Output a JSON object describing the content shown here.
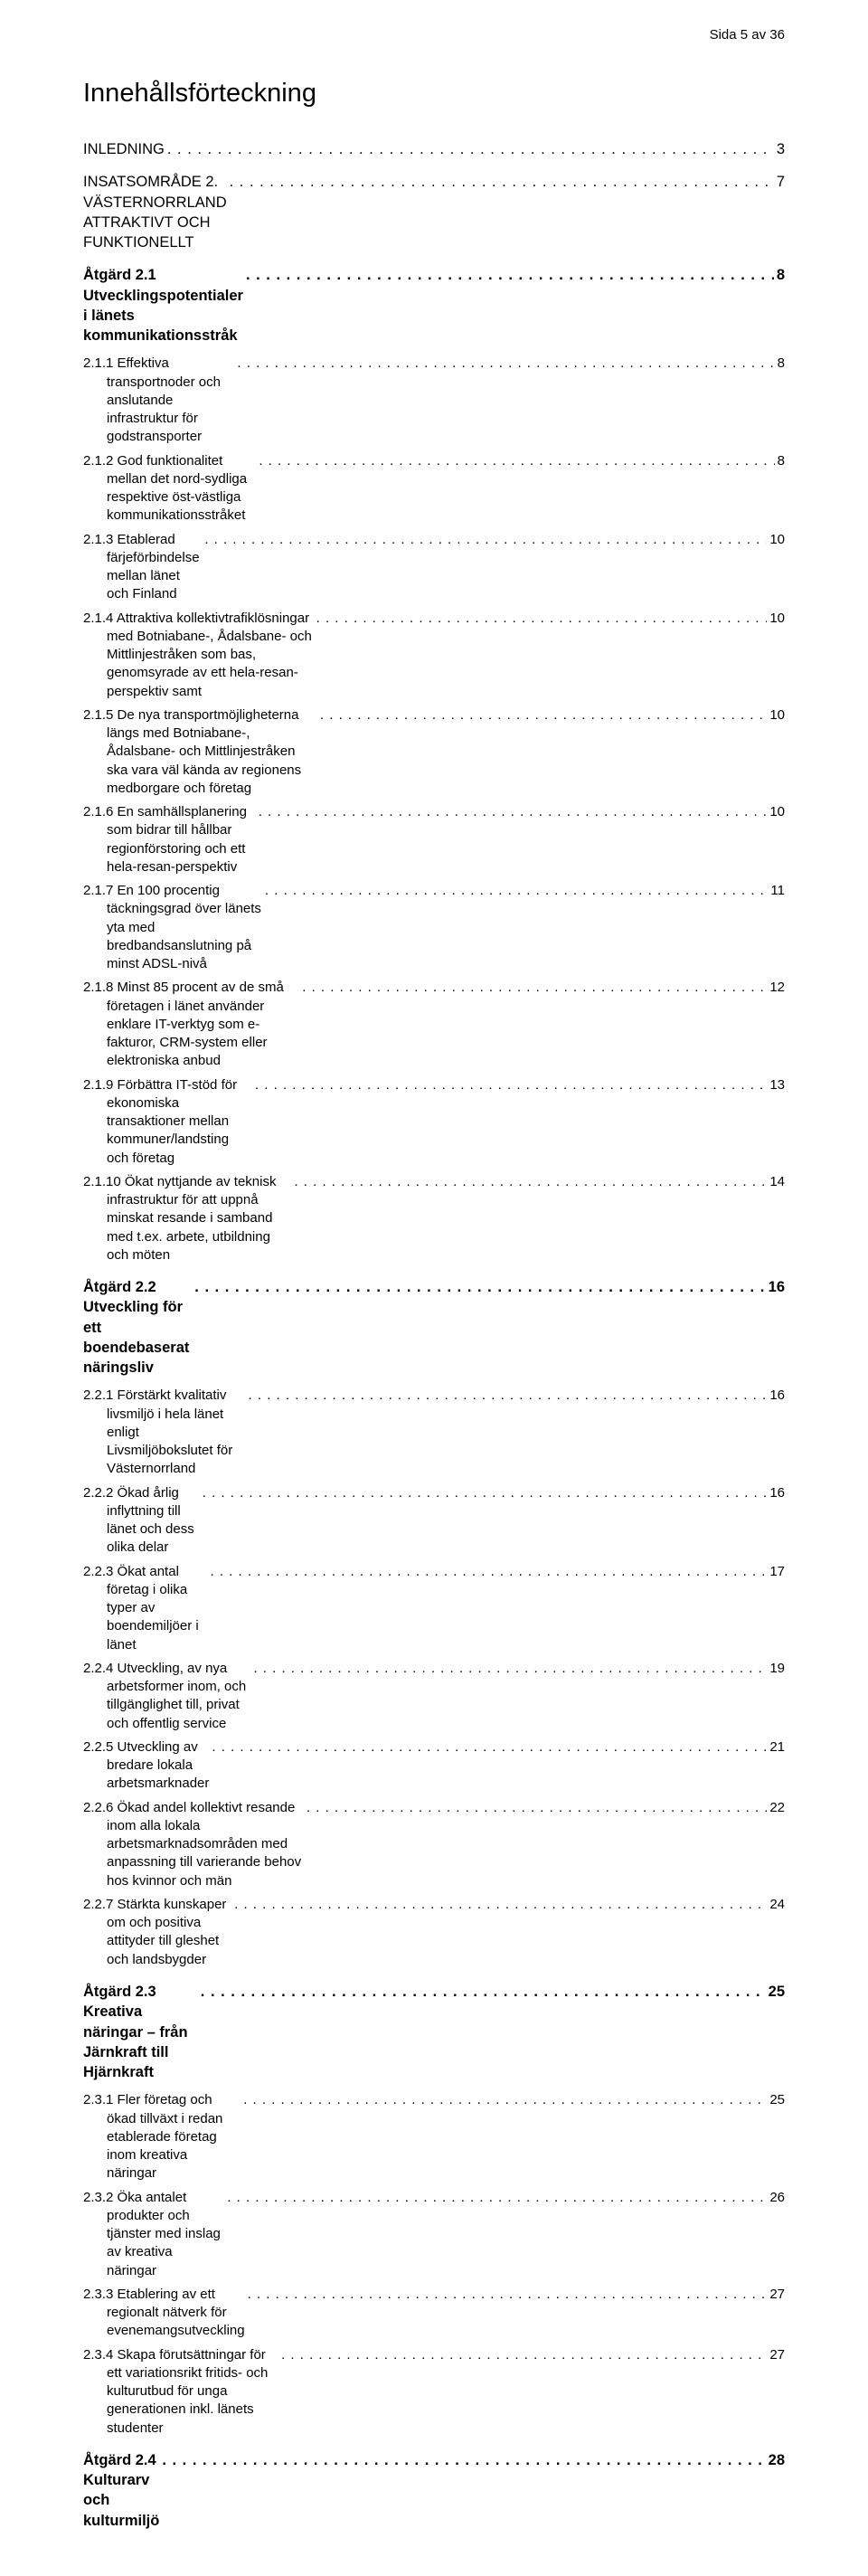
{
  "header": "Sida 5 av 36",
  "title": "Innehållsförteckning",
  "toc": [
    {
      "level": 1,
      "label": "INLEDNING",
      "page": "3",
      "bold": false
    },
    {
      "level": 1,
      "label": "INSATSOMRÅDE 2. VÄSTERNORRLAND ATTRAKTIVT OCH FUNKTIONELLT",
      "page": "7",
      "bold": false
    },
    {
      "level": 1,
      "label": "Åtgärd 2.1 Utvecklingspotentialer i länets kommunikationsstråk",
      "page": "8",
      "bold": true
    },
    {
      "level": 2,
      "label": "2.1.1 Effektiva transportnoder och anslutande infrastruktur för godstransporter",
      "page": "8"
    },
    {
      "level": 2,
      "label": "2.1.2 God funktionalitet mellan det nord-sydliga respektive öst-västliga kommunikationsstråket",
      "page": "8"
    },
    {
      "level": 2,
      "label": "2.1.3 Etablerad färjeförbindelse mellan länet och Finland",
      "page": "10"
    },
    {
      "level": 2,
      "label": "2.1.4 Attraktiva kollektivtrafiklösningar med Botniabane-, Ådalsbane- och Mittlinjestråken som bas, genomsyrade av ett hela-resan-perspektiv samt",
      "page": "10"
    },
    {
      "level": 2,
      "label": "2.1.5 De nya transportmöjligheterna längs med Botniabane-, Ådalsbane- och Mittlinjestråken ska vara väl kända av regionens medborgare och företag",
      "page": "10"
    },
    {
      "level": 2,
      "label": "2.1.6 En samhällsplanering som bidrar till hållbar regionförstoring och ett hela-resan-perspektiv",
      "page": "10"
    },
    {
      "level": 2,
      "label": "2.1.7 En 100 procentig täckningsgrad över länets yta med bredbandsanslutning på minst ADSL-nivå",
      "page": "11"
    },
    {
      "level": 2,
      "label": "2.1.8 Minst 85 procent av de små företagen i länet använder enklare IT-verktyg som e-fakturor, CRM-system eller elektroniska anbud",
      "page": "12"
    },
    {
      "level": 2,
      "label": "2.1.9 Förbättra IT-stöd för ekonomiska transaktioner mellan kommuner/landsting och företag",
      "page": "13"
    },
    {
      "level": 2,
      "label": "2.1.10 Ökat nyttjande av teknisk infrastruktur för att uppnå minskat resande i samband med t.ex. arbete, utbildning och möten",
      "page": "14"
    },
    {
      "level": 1,
      "label": "Åtgärd 2.2 Utveckling för ett boendebaserat näringsliv",
      "page": "16",
      "bold": true
    },
    {
      "level": 2,
      "label": "2.2.1 Förstärkt kvalitativ livsmiljö i hela länet enligt Livsmiljöbokslutet för Västernorrland",
      "page": "16"
    },
    {
      "level": 2,
      "label": "2.2.2 Ökad årlig inflyttning till länet och dess olika delar",
      "page": "16"
    },
    {
      "level": 2,
      "label": "2.2.3 Ökat antal företag i olika typer av boendemiljöer i länet",
      "page": "17"
    },
    {
      "level": 2,
      "label": "2.2.4 Utveckling, av nya arbetsformer inom, och tillgänglighet till, privat och offentlig service",
      "page": "19"
    },
    {
      "level": 2,
      "label": "2.2.5 Utveckling av bredare lokala arbetsmarknader",
      "page": "21"
    },
    {
      "level": 2,
      "label": "2.2.6 Ökad andel kollektivt resande inom alla lokala arbetsmarknadsområden med anpassning till varierande behov hos kvinnor och män",
      "page": "22"
    },
    {
      "level": 2,
      "label": "2.2.7 Stärkta kunskaper om och positiva attityder till gleshet och landsbygder",
      "page": "24"
    },
    {
      "level": 1,
      "label": "Åtgärd 2.3 Kreativa näringar – från Järnkraft till Hjärnkraft",
      "page": "25",
      "bold": true
    },
    {
      "level": 2,
      "label": "2.3.1 Fler företag och ökad tillväxt i redan etablerade företag inom kreativa näringar",
      "page": "25"
    },
    {
      "level": 2,
      "label": "2.3.2 Öka antalet produkter och tjänster med inslag av kreativa näringar",
      "page": "26"
    },
    {
      "level": 2,
      "label": "2.3.3 Etablering av ett regionalt nätverk för evenemangsutveckling",
      "page": "27"
    },
    {
      "level": 2,
      "label": "2.3.4 Skapa förutsättningar för ett variationsrikt fritids- och kulturutbud för unga generationen inkl. länets studenter",
      "page": "27"
    },
    {
      "level": 1,
      "label": "Åtgärd 2.4 Kulturarv och kulturmiljö",
      "page": "28",
      "bold": true
    }
  ]
}
